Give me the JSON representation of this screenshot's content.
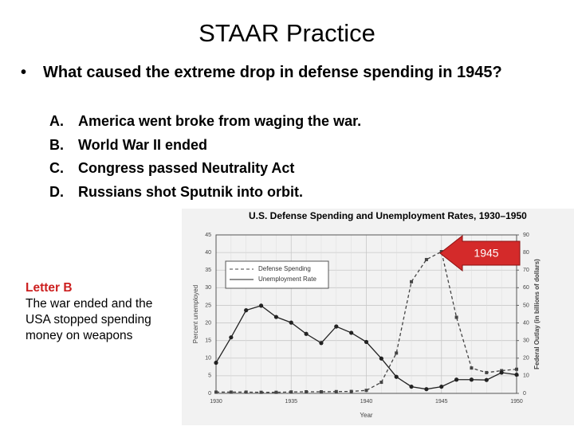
{
  "header": {
    "title": "STAAR Practice"
  },
  "question": {
    "text": "What caused the extreme drop in defense spending in 1945?",
    "choices": [
      {
        "letter": "A.",
        "text": "America went broke from waging the war."
      },
      {
        "letter": "B.",
        "text": "World War II ended"
      },
      {
        "letter": "C.",
        "text": "Congress passed Neutrality Act"
      },
      {
        "letter": "D.",
        "text": "Russians shot Sputnik into orbit."
      }
    ]
  },
  "answer": {
    "label": "Letter B",
    "text": "The war ended and the USA stopped spending money on weapons"
  },
  "chart_data": {
    "type": "line",
    "title": "U.S. Defense Spending and Unemployment Rates, 1930–1950",
    "x_label": "Year",
    "y_label": "Percent unemployed",
    "y2_label": "Federal Outlay (in billions of dollars)",
    "annotation": "1945",
    "x": [
      1930,
      1931,
      1932,
      1933,
      1934,
      1935,
      1936,
      1937,
      1938,
      1939,
      1940,
      1941,
      1942,
      1943,
      1944,
      1945,
      1946,
      1947,
      1948,
      1949,
      1950
    ],
    "xlim": [
      1930,
      1950
    ],
    "xticks": [
      1930,
      1935,
      1940,
      1945,
      1950
    ],
    "ylim": [
      0,
      45
    ],
    "yticks": [
      0,
      5,
      10,
      15,
      20,
      25,
      30,
      35,
      40,
      45
    ],
    "y2lim": [
      0,
      90
    ],
    "y2ticks": [
      0,
      10,
      20,
      30,
      40,
      50,
      60,
      70,
      80,
      90
    ],
    "grid": true,
    "legend": "upper left",
    "series": [
      {
        "name": "Defense Spending",
        "axis": "y2",
        "color": "#444444",
        "dashed": true,
        "values": [
          0.7,
          0.7,
          0.7,
          0.6,
          0.6,
          0.8,
          0.9,
          0.9,
          1.0,
          1.1,
          1.7,
          6.3,
          22.9,
          63.4,
          76.0,
          80.5,
          43.2,
          14.4,
          11.8,
          12.9,
          13.7
        ]
      },
      {
        "name": "Unemployment Rate",
        "color": "#222222",
        "dashed": false,
        "values": [
          8.7,
          15.9,
          23.6,
          24.9,
          21.7,
          20.1,
          16.9,
          14.3,
          19.0,
          17.2,
          14.6,
          9.9,
          4.7,
          1.9,
          1.2,
          1.9,
          3.9,
          3.9,
          3.8,
          5.9,
          5.3
        ]
      }
    ]
  }
}
